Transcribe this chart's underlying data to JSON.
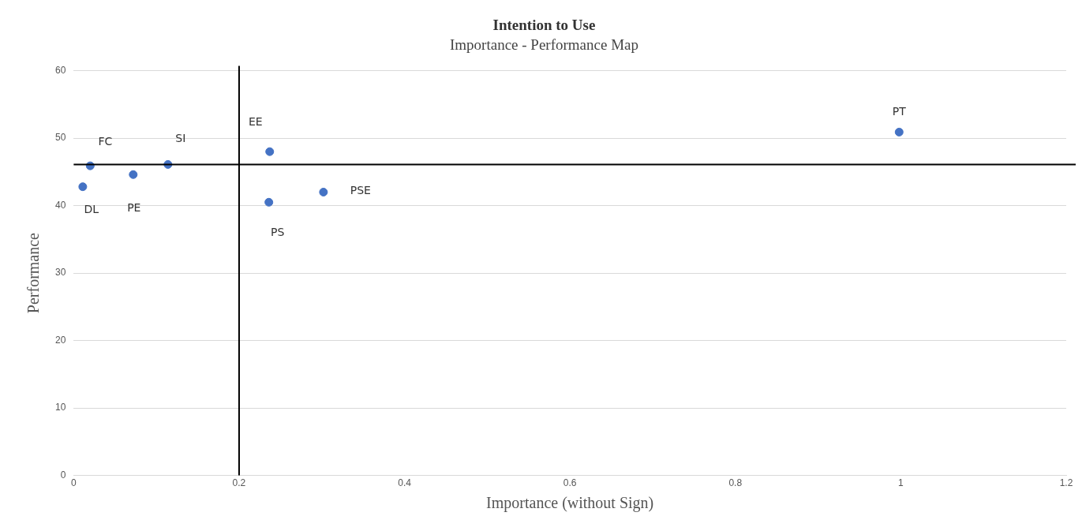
{
  "chart_data": {
    "type": "scatter",
    "title": "Intention to Use",
    "subtitle": "Importance - Performance Map",
    "xlabel": "Importance (without Sign)",
    "ylabel": "Performance",
    "x": [
      0.011,
      0.02,
      0.072,
      0.114,
      0.237,
      0.236,
      0.302,
      0.998
    ],
    "values": [
      42.8,
      45.9,
      44.6,
      46.1,
      48.0,
      40.5,
      42.0,
      50.9
    ],
    "color": "#4472c4",
    "marker": "circle",
    "xlim": [
      0,
      1.2
    ],
    "xticks": [
      0,
      0.2,
      0.4,
      0.6,
      0.8,
      1,
      1.2
    ],
    "ylim": [
      0,
      60
    ],
    "yticks": [
      0,
      10,
      20,
      30,
      40,
      50,
      60
    ],
    "grid": "y",
    "legend": false,
    "ref_lines": [
      {
        "axis": "x",
        "value": 0.2,
        "color": "#000000"
      },
      {
        "axis": "y",
        "value": 46.1,
        "color": "#000000"
      }
    ],
    "annotations": [
      {
        "text": "DL",
        "x": 0.011,
        "y": 42.8
      },
      {
        "text": "FC",
        "x": 0.02,
        "y": 45.9
      },
      {
        "text": "PE",
        "x": 0.072,
        "y": 44.6
      },
      {
        "text": "SI",
        "x": 0.114,
        "y": 46.1
      },
      {
        "text": "EE",
        "x": 0.237,
        "y": 48.0
      },
      {
        "text": "PS",
        "x": 0.236,
        "y": 40.5
      },
      {
        "text": "PSE",
        "x": 0.302,
        "y": 42.0
      },
      {
        "text": "PT",
        "x": 0.998,
        "y": 50.9
      }
    ]
  }
}
